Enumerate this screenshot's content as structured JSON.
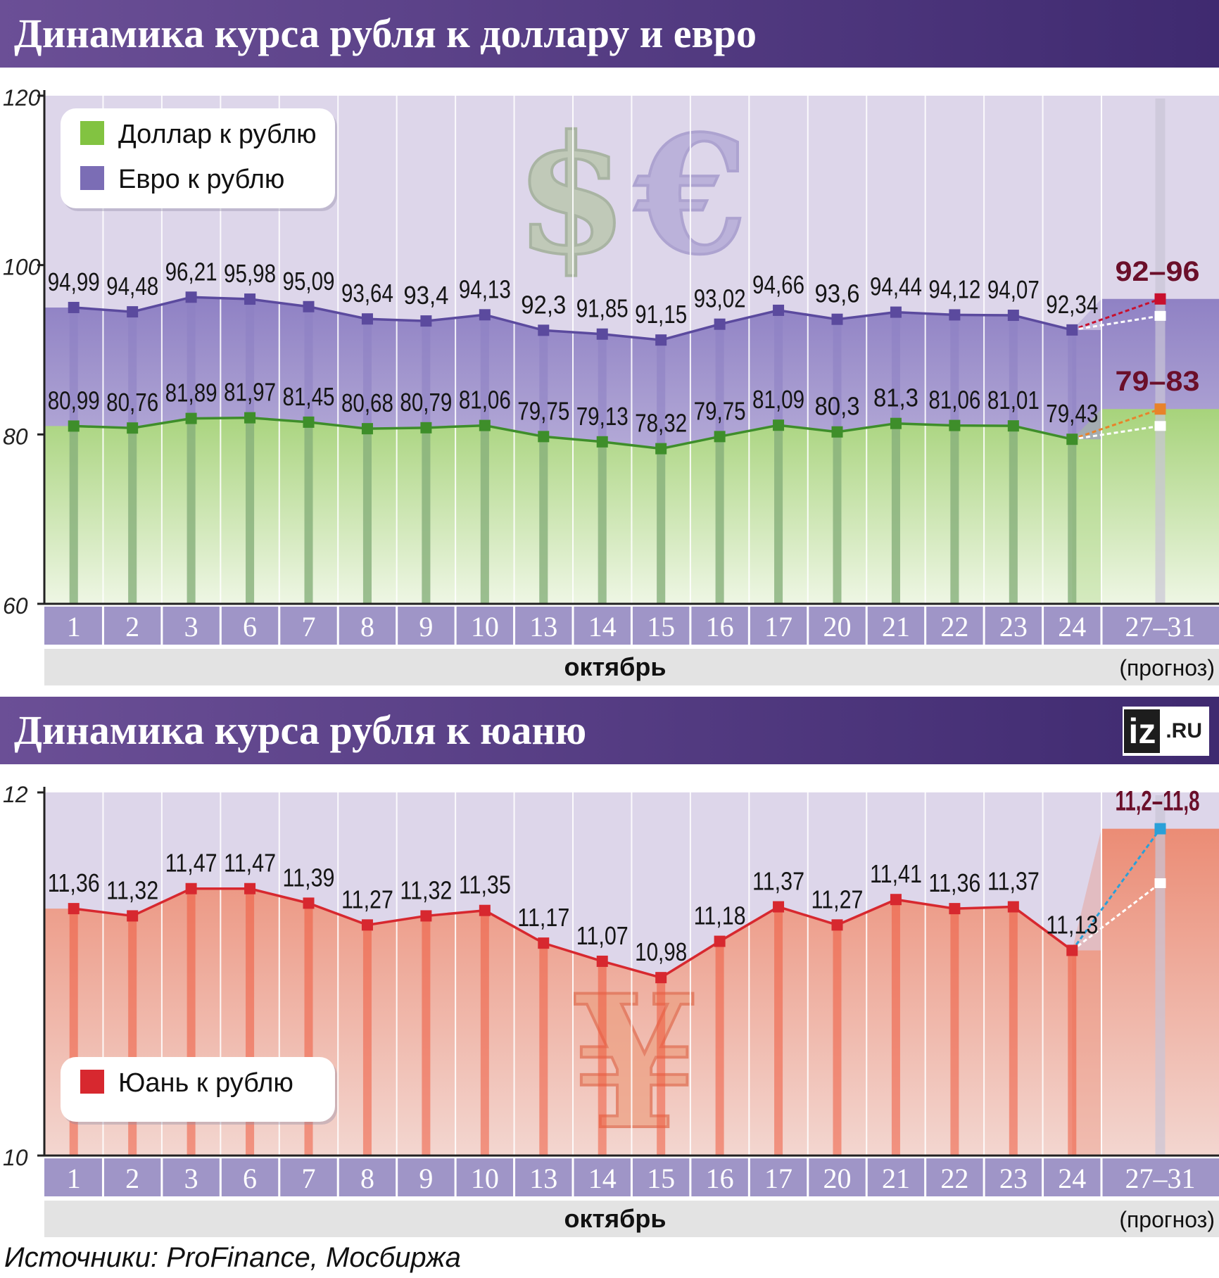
{
  "chart_data": [
    {
      "type": "line",
      "title": "Динамика курса рубля к доллару и евро",
      "categories": [
        "1",
        "2",
        "3",
        "6",
        "7",
        "8",
        "9",
        "10",
        "13",
        "14",
        "15",
        "16",
        "17",
        "20",
        "21",
        "22",
        "23",
        "24"
      ],
      "forecast_category": "27–31",
      "month_label": "октябрь",
      "forecast_note": "(прогноз)",
      "ylim": [
        60,
        120
      ],
      "yticks": [
        "60",
        "80",
        "100",
        "120"
      ],
      "legend": [
        {
          "label": "Доллар к рублю",
          "color": "#82c341"
        },
        {
          "label": "Евро к рублю",
          "color": "#7b6db5"
        }
      ],
      "series": [
        {
          "name": "Евро к рублю",
          "color": "#5b4a9e",
          "values": [
            94.99,
            94.48,
            96.21,
            95.98,
            95.09,
            93.64,
            93.4,
            94.13,
            92.3,
            91.85,
            91.15,
            93.02,
            94.66,
            93.6,
            94.44,
            94.12,
            94.07,
            92.34
          ],
          "labels": [
            "94,99",
            "94,48",
            "96,21",
            "95,98",
            "95,09",
            "93,64",
            "93,4",
            "94,13",
            "92,3",
            "91,85",
            "91,15",
            "93,02",
            "94,66",
            "93,6",
            "94,44",
            "94,12",
            "94,07",
            "92,34"
          ],
          "forecast": {
            "low": 92,
            "high": 96,
            "label": "92–96",
            "color": "#c8102e"
          }
        },
        {
          "name": "Доллар к рублю",
          "color": "#3e8e2a",
          "values": [
            80.99,
            80.76,
            81.89,
            81.97,
            81.45,
            80.68,
            80.79,
            81.06,
            79.75,
            79.13,
            78.32,
            79.75,
            81.09,
            80.3,
            81.3,
            81.06,
            81.01,
            79.43
          ],
          "labels": [
            "80,99",
            "80,76",
            "81,89",
            "81,97",
            "81,45",
            "80,68",
            "80,79",
            "81,06",
            "79,75",
            "79,13",
            "78,32",
            "79,75",
            "81,09",
            "80,3",
            "81,3",
            "81,06",
            "81,01",
            "79,43"
          ],
          "forecast": {
            "low": 79,
            "high": 83,
            "label": "79–83",
            "color": "#e8832a"
          }
        }
      ],
      "watermark_symbols": [
        "$",
        "€"
      ]
    },
    {
      "type": "line",
      "title": "Динамика курса рубля к юаню",
      "categories": [
        "1",
        "2",
        "3",
        "6",
        "7",
        "8",
        "9",
        "10",
        "13",
        "14",
        "15",
        "16",
        "17",
        "20",
        "21",
        "22",
        "23",
        "24"
      ],
      "forecast_category": "27–31",
      "month_label": "октябрь",
      "forecast_note": "(прогноз)",
      "ylim": [
        10,
        12
      ],
      "yticks": [
        "10",
        "12"
      ],
      "legend": [
        {
          "label": "Юань к рублю",
          "color": "#d7282f"
        }
      ],
      "series": [
        {
          "name": "Юань к рублю",
          "color": "#d7282f",
          "values": [
            11.36,
            11.32,
            11.47,
            11.47,
            11.39,
            11.27,
            11.32,
            11.35,
            11.17,
            11.07,
            10.98,
            11.18,
            11.37,
            11.27,
            11.41,
            11.36,
            11.37,
            11.13
          ],
          "labels": [
            "11,36",
            "11,32",
            "11,47",
            "11,47",
            "11,39",
            "11,27",
            "11,32",
            "11,35",
            "11,17",
            "11,07",
            "10,98",
            "11,18",
            "11,37",
            "11,27",
            "11,41",
            "11,36",
            "11,37",
            "11,13"
          ],
          "forecast": {
            "low": 11.2,
            "high": 11.8,
            "label": "11,2–11,8",
            "color": "#2aa0d8"
          }
        }
      ],
      "watermark_symbols": [
        "¥"
      ]
    }
  ],
  "logo": {
    "main": "iz",
    "sub": ".RU"
  },
  "source": "Источники: ProFinance, Мосбиржа"
}
